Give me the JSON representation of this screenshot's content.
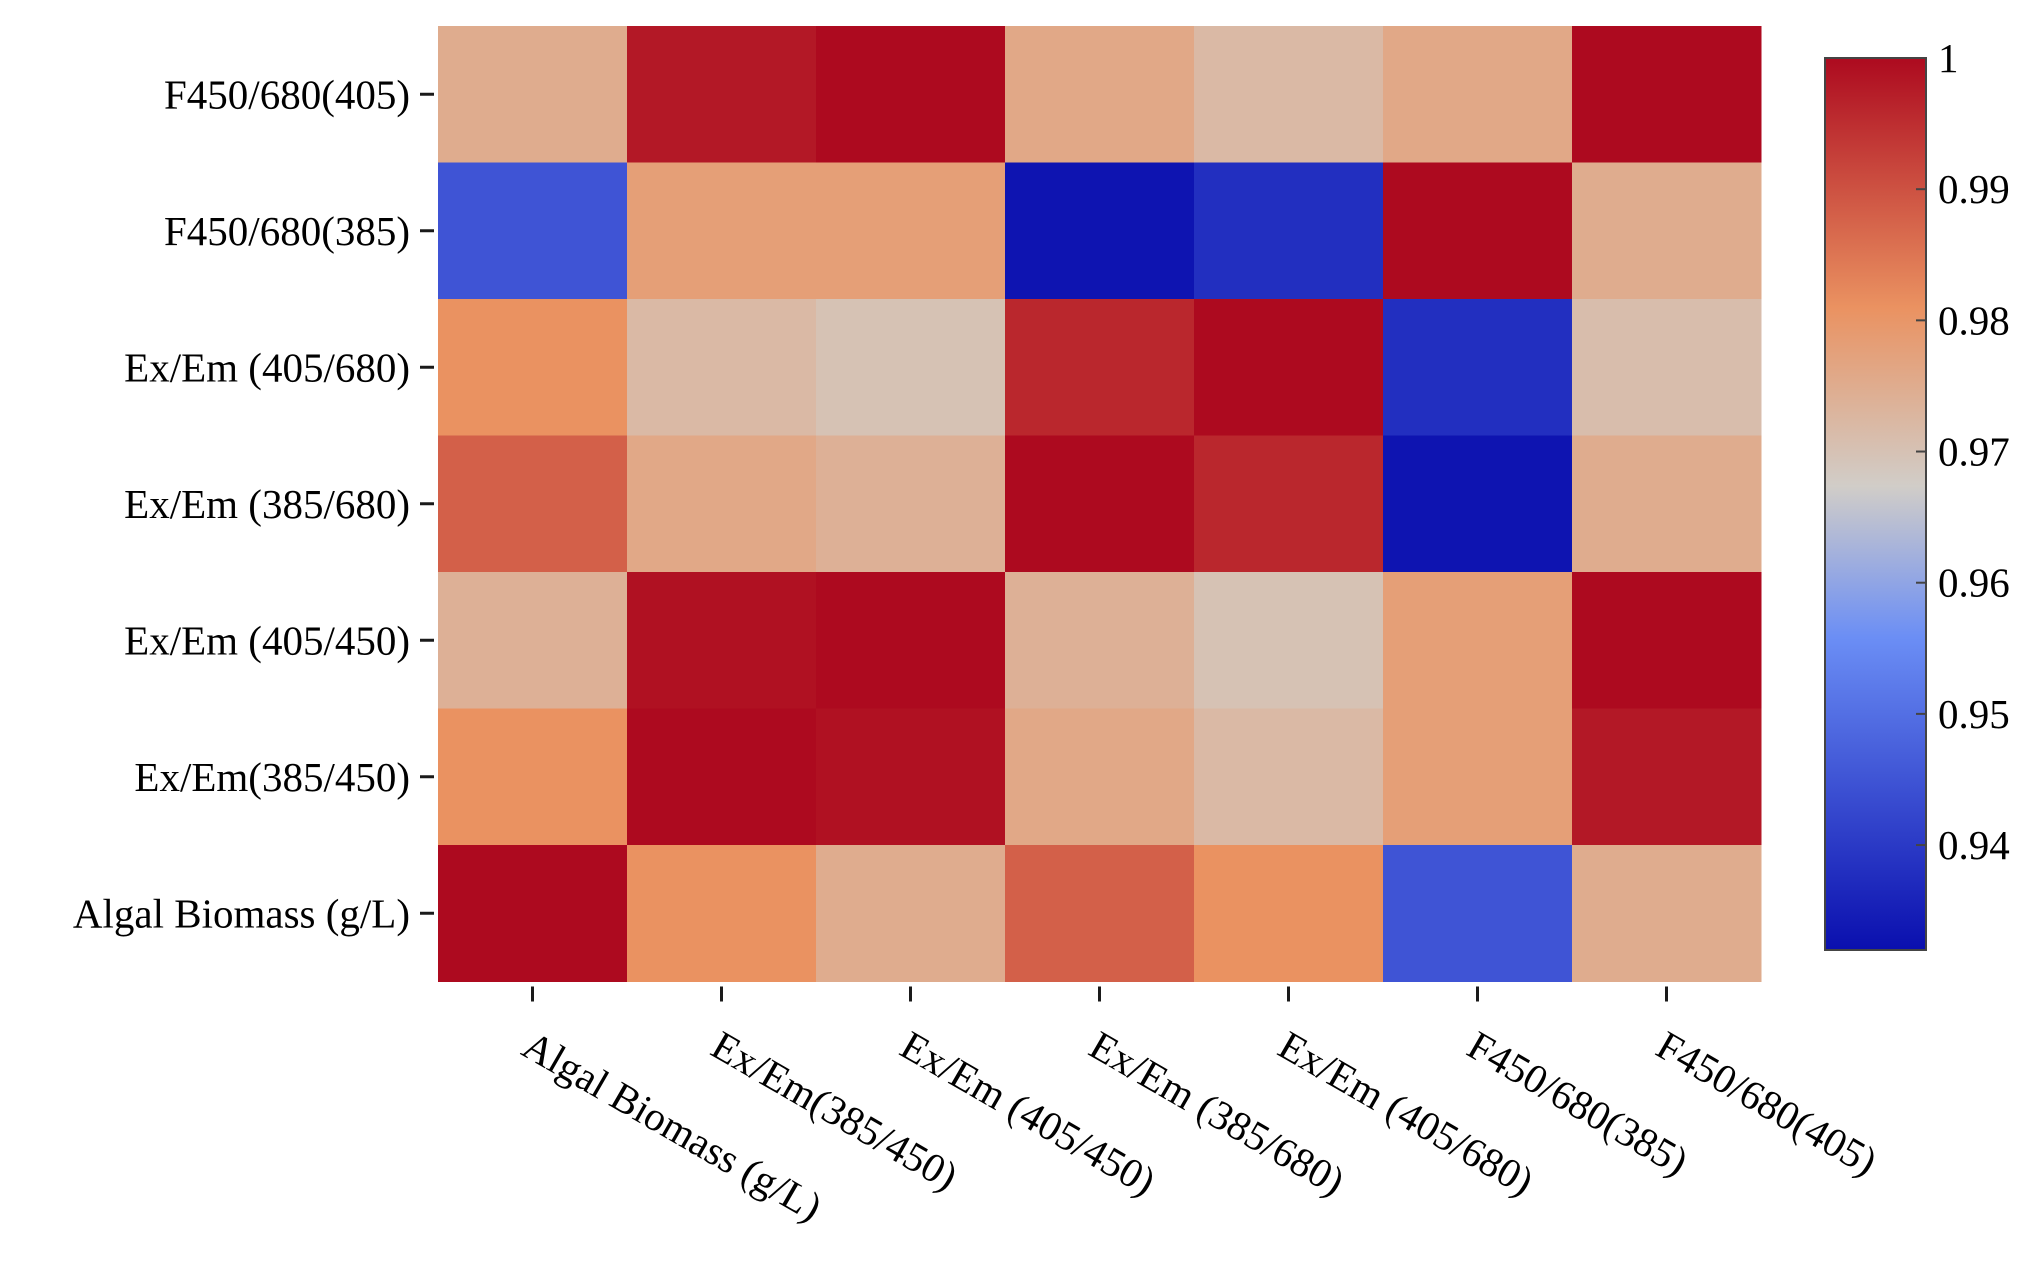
{
  "chart_data": {
    "type": "heatmap",
    "title": "",
    "xlabel": "",
    "ylabel": "",
    "x_categories": [
      "Algal Biomass (g/L)",
      "Ex/Em(385/450)",
      "Ex/Em (405/450)",
      "Ex/Em (385/680)",
      "Ex/Em (405/680)",
      "F450/680(385)",
      "F450/680(405)"
    ],
    "y_categories": [
      "F450/680(405)",
      "F450/680(385)",
      "Ex/Em (405/680)",
      "Ex/Em (385/680)",
      "Ex/Em (405/450)",
      "Ex/Em(385/450)",
      "Algal Biomass (g/L)"
    ],
    "values": [
      [
        0.975,
        0.998,
        1.0,
        0.976,
        0.972,
        0.976,
        1.0
      ],
      [
        0.945,
        0.978,
        0.978,
        0.933,
        0.938,
        1.0,
        0.975
      ],
      [
        0.981,
        0.972,
        0.97,
        0.996,
        1.0,
        0.938,
        0.971
      ],
      [
        0.988,
        0.976,
        0.974,
        1.0,
        0.996,
        0.933,
        0.975
      ],
      [
        0.974,
        0.999,
        1.0,
        0.974,
        0.97,
        0.978,
        1.0
      ],
      [
        0.981,
        1.0,
        0.999,
        0.976,
        0.972,
        0.978,
        0.998
      ],
      [
        1.0,
        0.981,
        0.975,
        0.988,
        0.981,
        0.945,
        0.975
      ]
    ],
    "colorbar": {
      "min": 0.932,
      "max": 1.0,
      "ticks": [
        "1",
        "0.99",
        "0.98",
        "0.97",
        "0.96",
        "0.95",
        "0.94"
      ],
      "tick_values": [
        1.0,
        0.99,
        0.98,
        0.97,
        0.96,
        0.95,
        0.94
      ],
      "colormap_stops": [
        {
          "v": 0.0,
          "color": "#0a0fae"
        },
        {
          "v": 0.35,
          "color": "#6b8ef5"
        },
        {
          "v": 0.52,
          "color": "#d1cdc8"
        },
        {
          "v": 0.72,
          "color": "#ea9261"
        },
        {
          "v": 1.0,
          "color": "#ad0a1f"
        }
      ]
    },
    "grid": false,
    "legend": "right"
  }
}
